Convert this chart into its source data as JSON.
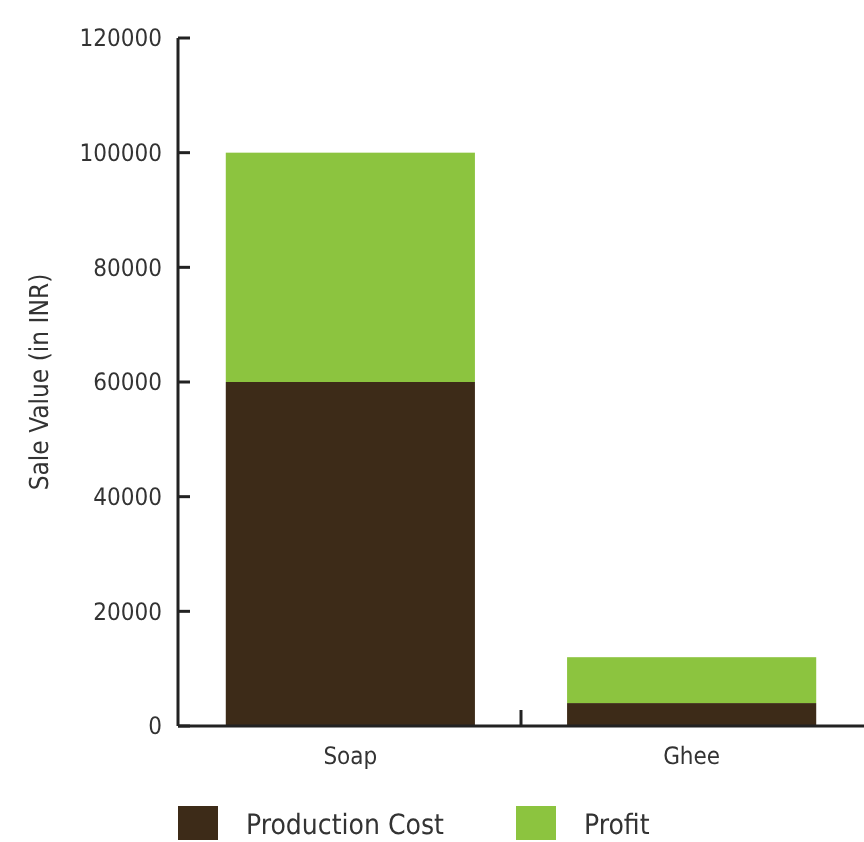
{
  "chart_data": {
    "type": "bar",
    "stacked": true,
    "categories": [
      "Soap",
      "Ghee"
    ],
    "ylabel": "Sale Value (in INR)",
    "ylim": [
      0,
      120000
    ],
    "yticks": [
      0,
      20000,
      40000,
      60000,
      80000,
      100000,
      120000
    ],
    "legend": "bottom",
    "grid": false,
    "series": [
      {
        "name": "Production Cost",
        "color": "#3d2b18",
        "values": [
          60000,
          4000
        ]
      },
      {
        "name": "Profit",
        "color": "#8cc43f",
        "values": [
          40000,
          8000
        ]
      }
    ]
  }
}
